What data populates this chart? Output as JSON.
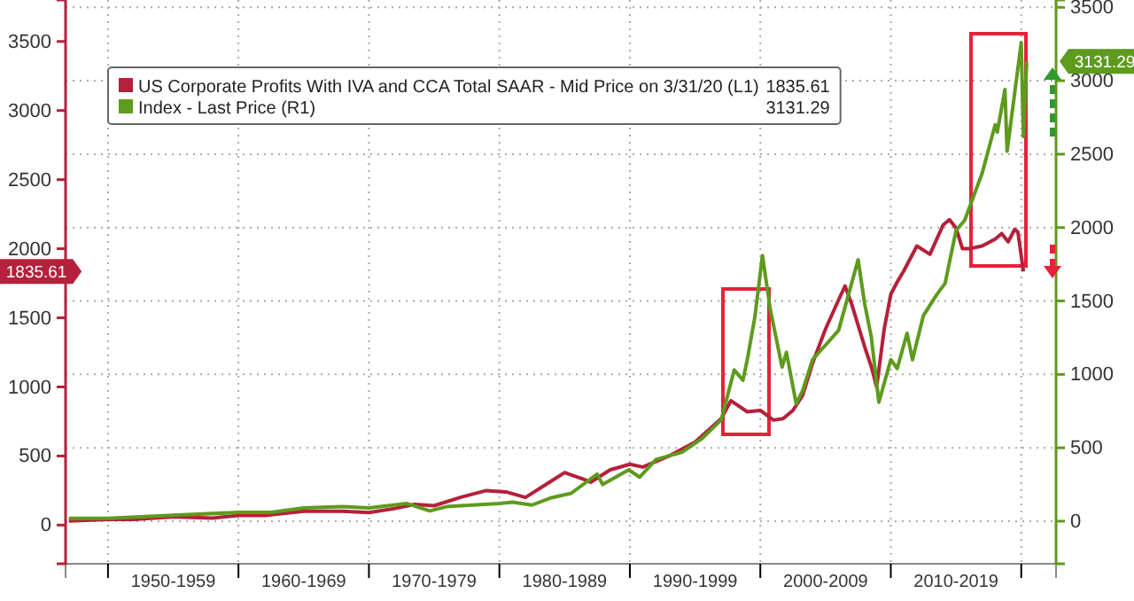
{
  "chart_data": {
    "type": "line",
    "legend": "top left",
    "grid": true,
    "line_style": "solid",
    "marker": "none",
    "xlim": [
      "1946-10",
      "2022-09"
    ],
    "annotations": [
      "1835.61",
      "3131.29"
    ],
    "xticks": [
      {
        "value": "1950-01",
        "label": null
      },
      {
        "value": "1955-01",
        "label": "1950-1959"
      },
      {
        "value": "1960-01",
        "label": null
      },
      {
        "value": "1965-01",
        "label": "1960-1969"
      },
      {
        "value": "1970-01",
        "label": null
      },
      {
        "value": "1975-01",
        "label": "1970-1979"
      },
      {
        "value": "1980-01",
        "label": null
      },
      {
        "value": "1985-01",
        "label": "1980-1989"
      },
      {
        "value": "1990-01",
        "label": null
      },
      {
        "value": "1995-01",
        "label": "1990-1999"
      },
      {
        "value": "2000-01",
        "label": null
      },
      {
        "value": "2005-01",
        "label": "2000-2009"
      },
      {
        "value": "2010-01",
        "label": null
      },
      {
        "value": "2015-01",
        "label": "2010-2019"
      },
      {
        "value": "2020-01",
        "label": null
      }
    ],
    "ylim": [
      -280,
      3800
    ],
    "yticks": [
      0,
      500,
      1000,
      1500,
      2000,
      2500,
      3000,
      3500
    ],
    "y2lim": [
      -290,
      3550
    ],
    "y2ticks": [
      0,
      500,
      1000,
      1500,
      2000,
      2500,
      3000,
      3500
    ],
    "series": [
      {
        "name": "US Corporate Profits With IVA and CCA Total SAAR - Mid Price on 3/31/20 (L1)",
        "color": "#b5203a",
        "axis": "y",
        "x": [
          "1947-01",
          "1950-01",
          "1952-01",
          "1955-01",
          "1958-01",
          "1960-01",
          "1962-01",
          "1965-01",
          "1968-01",
          "1970-01",
          "1972-01",
          "1973-07",
          "1975-01",
          "1977-01",
          "1979-01",
          "1980-07",
          "1982-01",
          "1984-01",
          "1985-01",
          "1986-07",
          "1987-01",
          "1988-07",
          "1990-01",
          "1991-01",
          "1993-01",
          "1995-01",
          "1997-01",
          "1997-10",
          "1999-01",
          "2000-01",
          "2001-01",
          "2001-10",
          "2002-07",
          "2003-04",
          "2004-01",
          "2005-01",
          "2006-01",
          "2006-07",
          "2007-01",
          "2008-01",
          "2008-07",
          "2008-12",
          "2009-07",
          "2010-01",
          "2010-07",
          "2011-01",
          "2012-01",
          "2013-01",
          "2014-01",
          "2014-07",
          "2015-01",
          "2015-07",
          "2016-01",
          "2017-01",
          "2018-01",
          "2018-07",
          "2019-01",
          "2019-07",
          "2019-10",
          "2020-03"
        ],
        "values": [
          30,
          40,
          40,
          60,
          50,
          70,
          70,
          100,
          100,
          90,
          120,
          150,
          140,
          200,
          250,
          240,
          200,
          320,
          380,
          330,
          310,
          400,
          440,
          420,
          500,
          600,
          770,
          900,
          820,
          830,
          760,
          770,
          830,
          940,
          1170,
          1420,
          1630,
          1730,
          1600,
          1290,
          1150,
          1000,
          1420,
          1670,
          1760,
          1840,
          2020,
          1960,
          2170,
          2210,
          2150,
          2000,
          2000,
          2020,
          2070,
          2110,
          2050,
          2140,
          2120,
          1835.61
        ]
      },
      {
        "name": "Index - Last Price (R1)",
        "color": "#5e9a1e",
        "axis": "y2",
        "x": [
          "1947-01",
          "1950-01",
          "1955-01",
          "1960-01",
          "1962-07",
          "1965-01",
          "1968-01",
          "1970-01",
          "1972-12",
          "1974-09",
          "1976-01",
          "1980-01",
          "1981-01",
          "1982-07",
          "1984-01",
          "1985-07",
          "1987-07",
          "1987-12",
          "1989-12",
          "1990-10",
          "1992-01",
          "1994-01",
          "1995-07",
          "1997-01",
          "1998-01",
          "1998-09",
          "1999-01",
          "1999-08",
          "2000-03",
          "2000-10",
          "2001-09",
          "2002-01",
          "2002-10",
          "2003-04",
          "2004-01",
          "2005-01",
          "2006-01",
          "2007-07",
          "2008-01",
          "2008-07",
          "2009-02",
          "2010-01",
          "2010-07",
          "2011-04",
          "2011-09",
          "2012-07",
          "2013-07",
          "2014-03",
          "2015-01",
          "2015-09",
          "2017-01",
          "2018-01",
          "2018-03",
          "2018-10",
          "2018-12",
          "2020-01",
          "2020-03",
          "2020-06"
        ],
        "values": [
          20,
          20,
          40,
          60,
          60,
          90,
          100,
          90,
          120,
          70,
          100,
          120,
          130,
          110,
          160,
          190,
          320,
          250,
          350,
          300,
          420,
          470,
          560,
          690,
          1030,
          960,
          1100,
          1390,
          1810,
          1450,
          1050,
          1150,
          800,
          890,
          1100,
          1200,
          1300,
          1780,
          1480,
          1260,
          810,
          1100,
          1040,
          1280,
          1100,
          1400,
          1540,
          1620,
          1980,
          2050,
          2370,
          2700,
          2650,
          2940,
          2520,
          3260,
          2620,
          3131.29
        ]
      }
    ]
  }
}
